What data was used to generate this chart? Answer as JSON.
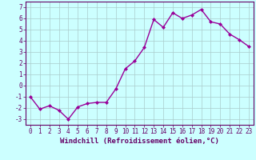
{
  "x": [
    0,
    1,
    2,
    3,
    4,
    5,
    6,
    7,
    8,
    9,
    10,
    11,
    12,
    13,
    14,
    15,
    16,
    17,
    18,
    19,
    20,
    21,
    22,
    23
  ],
  "y": [
    -1.0,
    -2.1,
    -1.8,
    -2.2,
    -3.0,
    -1.9,
    -1.6,
    -1.5,
    -1.5,
    -0.3,
    1.5,
    2.2,
    3.4,
    5.9,
    5.2,
    6.5,
    6.0,
    6.3,
    6.8,
    5.7,
    5.5,
    4.6,
    4.1,
    3.5
  ],
  "line_color": "#990099",
  "marker": "D",
  "marker_size": 2.0,
  "bg_color": "#ccffff",
  "grid_color": "#aacccc",
  "xlabel": "Windchill (Refroidissement éolien,°C)",
  "xlim": [
    -0.5,
    23.5
  ],
  "ylim": [
    -3.5,
    7.5
  ],
  "yticks": [
    -3,
    -2,
    -1,
    0,
    1,
    2,
    3,
    4,
    5,
    6,
    7
  ],
  "xticks": [
    0,
    1,
    2,
    3,
    4,
    5,
    6,
    7,
    8,
    9,
    10,
    11,
    12,
    13,
    14,
    15,
    16,
    17,
    18,
    19,
    20,
    21,
    22,
    23
  ],
  "tick_label_size": 5.5,
  "xlabel_size": 6.5,
  "axis_color": "#660066",
  "spine_color": "#660066",
  "linewidth": 1.0
}
